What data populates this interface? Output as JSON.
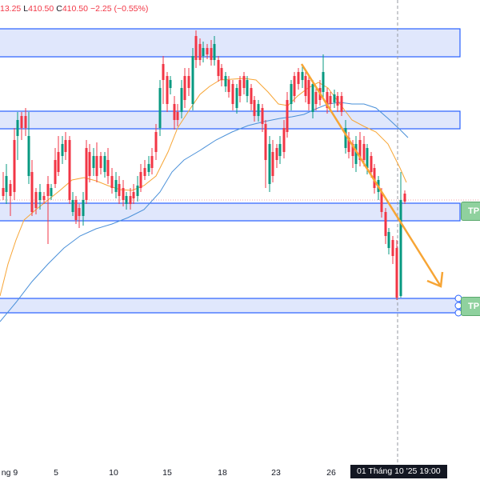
{
  "ohlc_legend": {
    "high_value": "13.25",
    "low_label": "L",
    "low_value": "410.50",
    "close_label": "C",
    "close_value": "410.50",
    "change": "−2.25 (−0.55%)"
  },
  "time_axis": {
    "ticks": [
      "ng 9",
      "5",
      "10",
      "15",
      "18",
      "23",
      "26"
    ],
    "cursor_label": "01 Tháng 10 '25   19:00"
  },
  "badges": {
    "tp1": "TP",
    "tp2": "TP"
  },
  "colors": {
    "up": "#089981",
    "down": "#f23645",
    "zone_fill": "#dbe3fb",
    "zone_border": "#2962ff",
    "trend_arrow": "#f7a535",
    "ema_fast": "#f7a535",
    "ema_slow": "#4a90d9",
    "tp_badge": "#8fd19e"
  },
  "chart_data": {
    "type": "candlestick",
    "price_axis_visible": false,
    "x_tick_labels": [
      "ng 9",
      "5",
      "10",
      "15",
      "18",
      "23",
      "26",
      "01 Tháng 10 '25 19:00"
    ],
    "last_bar": {
      "close": 410.5,
      "low": 410.5,
      "change": -2.25,
      "change_pct": -0.55
    },
    "overlays": [
      "4 horizontal support/resistance zones",
      "downward trend arrow",
      "fast moving average",
      "slow moving average",
      "2 take-profit labels"
    ]
  }
}
